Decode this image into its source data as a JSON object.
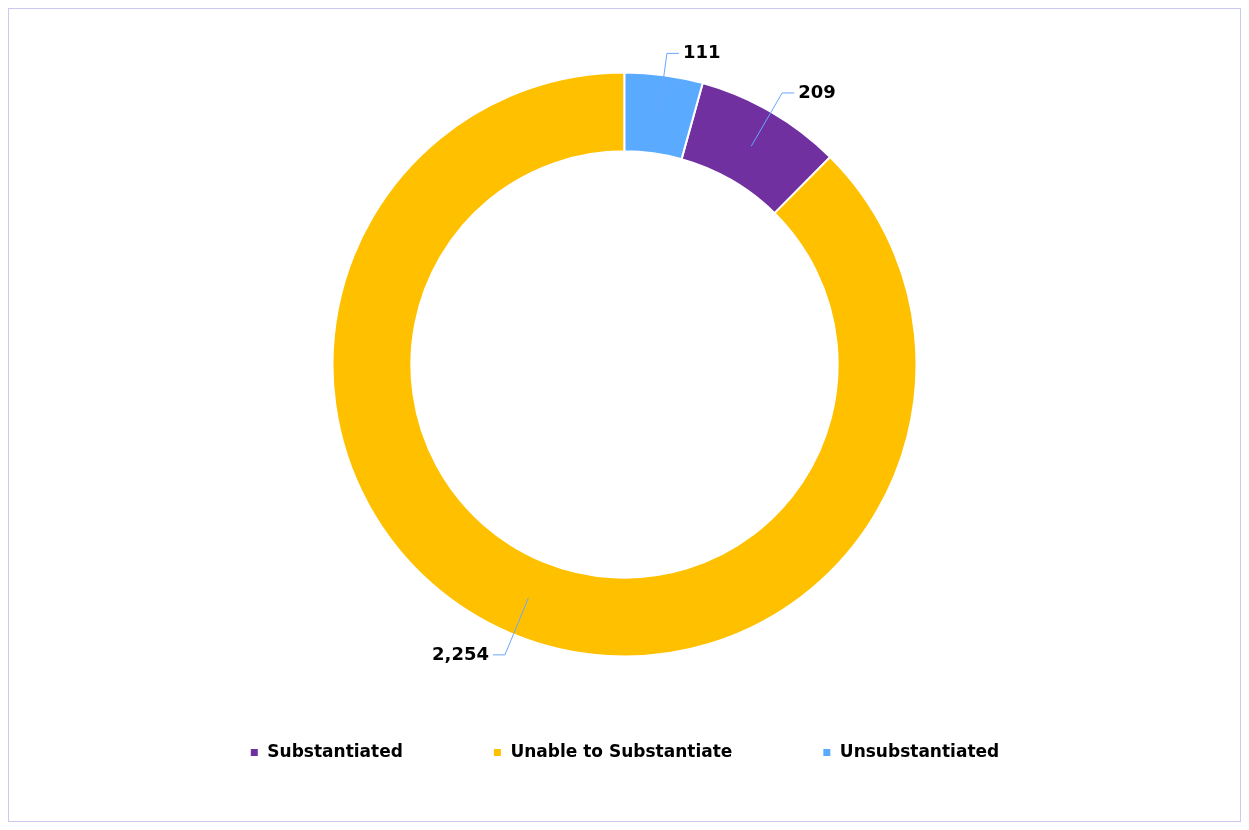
{
  "chart_data": {
    "type": "donut",
    "categories": [
      "Substantiated",
      "Unable to Substantiate",
      "Unsubstantiated"
    ],
    "values": [
      209,
      2254,
      111
    ],
    "value_labels": [
      "209",
      "2,254",
      "111"
    ],
    "colors": [
      "#7030a0",
      "#ffc000",
      "#5aabff"
    ],
    "legend": "bottom"
  }
}
